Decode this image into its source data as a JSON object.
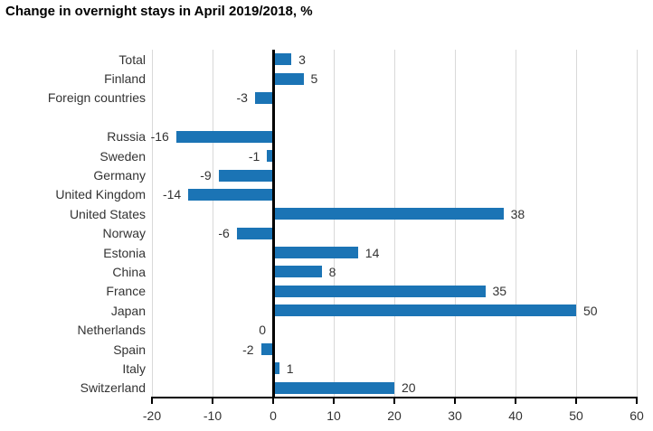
{
  "title": "Change in overnight stays in April 2019/2018, %",
  "colors": {
    "bar": "#1b74b5",
    "grid": "#d9d9d9",
    "axis": "#000000",
    "text": "#333333",
    "title_text": "#000000"
  },
  "chart_data": {
    "type": "bar",
    "orientation": "horizontal",
    "title": "Change in overnight stays in April 2019/2018, %",
    "categories": [
      "Total",
      "Finland",
      "Foreign countries",
      "Russia",
      "Sweden",
      "Germany",
      "United Kingdom",
      "United States",
      "Norway",
      "Estonia",
      "China",
      "France",
      "Japan",
      "Netherlands",
      "Spain",
      "Italy",
      "Switzerland"
    ],
    "values": [
      3,
      5,
      -3,
      -16,
      -1,
      -9,
      -14,
      38,
      -6,
      14,
      8,
      35,
      50,
      0,
      -2,
      1,
      20
    ],
    "spacer_after_index": 2,
    "xlabel": "",
    "ylabel": "",
    "xlim": [
      -20,
      60
    ],
    "xticks": [
      -20,
      -10,
      0,
      10,
      20,
      30,
      40,
      50,
      60
    ],
    "grid": true,
    "legend": false,
    "value_labels": true,
    "bar_color": "#1b74b5"
  }
}
